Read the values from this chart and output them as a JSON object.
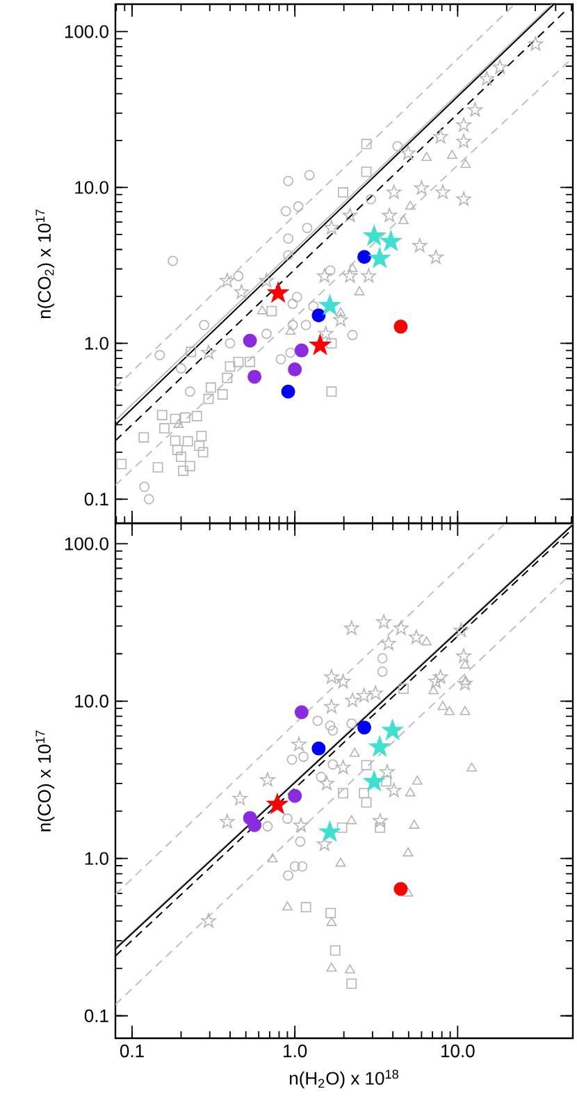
{
  "chart_data": [
    {
      "type": "scatter",
      "ylabel": "n(CO$_{2}$) x 10$^{17}$",
      "log": "xy",
      "xlim": [
        0.079,
        51
      ],
      "ylim": [
        0.07,
        150
      ],
      "yticks": [
        0.1,
        {
          "value": 1,
          "label": "1.0"
        },
        {
          "value": 10,
          "label": "10.0"
        },
        {
          "value": 100,
          "label": "100.0"
        }
      ],
      "tick_labels": "y",
      "series": [
        {
          "color": "#b4b4b4",
          "marker": "square",
          "x": [
            0.086,
            0.118,
            0.153,
            0.158,
            0.184,
            0.212,
            0.25,
            0.184,
            0.22,
            0.19,
            0.2,
            0.259,
            0.273,
            0.144,
            0.206,
            0.227,
            0.267,
            0.295,
            0.305,
            0.36,
            0.384,
            0.4,
            0.45,
            0.53,
            0.23,
            1.68,
            1.68,
            2.75,
            2.75,
            1.98,
            0.72
          ],
          "values": [
            0.168,
            0.249,
            0.346,
            0.285,
            0.327,
            0.334,
            0.341,
            0.237,
            0.235,
            0.207,
            0.187,
            0.22,
            0.2,
            0.16,
            0.152,
            0.163,
            0.254,
            0.44,
            0.52,
            0.47,
            0.6,
            0.71,
            0.76,
            0.76,
            0.88,
            0.49,
            1.0,
            19.0,
            12.6,
            9.3,
            1.61
          ]
        },
        {
          "color": "#b4b4b4",
          "marker": "circle",
          "x": [
            0.178,
            0.91,
            1.23,
            0.88,
            1.05,
            1.19,
            0.91,
            0.91,
            4.27,
            2.93,
            1.65,
            0.148,
            0.2,
            0.227,
            0.277,
            0.4,
            0.67,
            0.97,
            1.17,
            0.82,
            0.94,
            2.26,
            0.119,
            0.127,
            1.03,
            1.3,
            0.45,
            0.97
          ],
          "values": [
            3.38,
            11.0,
            12.0,
            7.05,
            7.55,
            5.5,
            4.7,
            3.67,
            18.4,
            8.4,
            2.93,
            0.84,
            0.69,
            0.49,
            1.31,
            1.0,
            1.15,
            1.31,
            1.31,
            0.79,
            0.87,
            1.13,
            0.12,
            0.1,
            1.98,
            1.73,
            2.7,
            1.79
          ]
        },
        {
          "color": "#b4b4b4",
          "marker": "triangle",
          "x": [
            9.25,
            11.2,
            6.44,
            5.12,
            4.65,
            2.26,
            2.49,
            0.94,
            0.63,
            0.193,
            1.91
          ],
          "values": [
            16.0,
            14.0,
            15.5,
            7.55,
            6.1,
            3.0,
            2.13,
            1.19,
            1.61,
            0.3,
            1.56
          ]
        },
        {
          "color": "#b4b4b4",
          "marker": "star",
          "x": [
            30.1,
            18.2,
            15.1,
            12.8,
            10.9,
            7.85,
            10.9,
            6.0,
            8.1,
            10.9,
            5.85,
            7.35,
            4.96,
            1.68,
            2.18,
            4.06,
            3.81,
            0.384,
            0.47,
            0.295,
            1.52,
            2.18,
            2.84,
            1.91,
            1.55,
            0.67
          ],
          "values": [
            83,
            59,
            49.7,
            31.4,
            25.1,
            21.1,
            19.7,
            9.9,
            9.3,
            8.4,
            4.22,
            3.56,
            16.6,
            5.5,
            6.6,
            9.3,
            6.6,
            2.52,
            2.13,
            0.87,
            2.7,
            2.7,
            2.7,
            1.41,
            1.15,
            2.52
          ]
        },
        {
          "type": "line",
          "color": "#c0c0c0",
          "line_style": "dashed",
          "marker": "none",
          "x": [
            0.079,
            22.4
          ],
          "values": [
            0.52,
            150
          ]
        },
        {
          "type": "line",
          "color": "#c0c0c0",
          "line_style": "dashed",
          "marker": "none",
          "x": [
            0.079,
            51
          ],
          "values": [
            0.123,
            68
          ]
        },
        {
          "type": "line",
          "color": "#c0c0c0",
          "line_style": "solid",
          "marker": "none",
          "x": [
            0.079,
            38
          ],
          "values": [
            0.32,
            150
          ]
        },
        {
          "type": "line",
          "color": "#000000",
          "line_style": "dashed",
          "marker": "none",
          "x": [
            0.079,
            47
          ],
          "values": [
            0.237,
            139
          ]
        },
        {
          "type": "line",
          "color": "#000000",
          "line_style": "solid",
          "marker": "none",
          "x": [
            0.079,
            39
          ],
          "values": [
            0.3,
            150
          ]
        },
        {
          "color": "#8a2be2",
          "marker": "circle",
          "x": [
            0.53,
            0.565,
            1.1,
            1.0
          ],
          "values": [
            1.04,
            0.61,
            0.9,
            0.68
          ]
        },
        {
          "color": "#0000ff",
          "marker": "circle",
          "x": [
            2.67,
            1.4,
            0.91
          ],
          "values": [
            3.58,
            1.51,
            0.49
          ]
        },
        {
          "color": "#ff0000",
          "marker": "circle",
          "x": [
            4.47
          ],
          "values": [
            1.28
          ]
        },
        {
          "color": "#ff0000",
          "marker": "star",
          "x": [
            0.79,
            1.43
          ],
          "values": [
            2.1,
            0.97
          ]
        },
        {
          "color": "#40e0d0",
          "marker": "star",
          "x": [
            3.07,
            3.89,
            3.32,
            1.64
          ],
          "values": [
            4.87,
            4.49,
            3.5,
            1.74
          ]
        }
      ]
    },
    {
      "type": "scatter",
      "xlabel": "n(H$_{2}$O) x 10$^{18}$",
      "ylabel": "n(CO) x 10$^{17}$",
      "log": "xy",
      "xlim": [
        0.079,
        51
      ],
      "ylim": [
        0.072,
        135
      ],
      "xticks": [
        0.1,
        {
          "value": 1,
          "label": "1.0"
        },
        {
          "value": 10,
          "label": "10.0"
        }
      ],
      "yticks": [
        0.1,
        {
          "value": 1,
          "label": "1.0"
        },
        {
          "value": 10,
          "label": "10.0"
        },
        {
          "value": 100,
          "label": "100.0"
        }
      ],
      "series": [
        {
          "color": "#b4b4b4",
          "marker": "square",
          "x": [
            1.17,
            1.66,
            1.77,
            2.23,
            1.95,
            3.34,
            1.98,
            2.75,
            2.66,
            4.65,
            2.75,
            3.64
          ],
          "values": [
            0.49,
            0.45,
            0.26,
            0.16,
            1.57,
            1.57,
            2.6,
            3.92,
            2.6,
            12.0,
            2.27,
            3.09
          ]
        },
        {
          "color": "#b4b4b4",
          "marker": "circle",
          "x": [
            3.45,
            3.45,
            1.38,
            1.65,
            1.71,
            0.96,
            1.13,
            2.23,
            1.45,
            1.71,
            0.9,
            0.68,
            1.08,
            0.91,
            1.0,
            1.11
          ],
          "values": [
            18.7,
            15.4,
            7.5,
            6.98,
            6.5,
            4.25,
            4.43,
            7.2,
            3.3,
            3.96,
            1.79,
            1.6,
            1.28,
            0.78,
            0.89,
            0.89
          ]
        },
        {
          "color": "#b4b4b4",
          "marker": "triangle",
          "x": [
            6.44,
            11.1,
            11.2,
            7.1,
            8.1,
            8.9,
            11.1,
            12.2,
            5.65,
            5.12,
            2.33,
            0.73,
            1.91,
            2.23,
            4.96,
            5.41,
            1.68,
            1.68,
            2.18,
            0.9,
            4.96
          ],
          "values": [
            23.7,
            16.9,
            13.3,
            11.6,
            9.2,
            8.55,
            8.55,
            3.74,
            3.09,
            2.6,
            4.64,
            0.99,
            0.93,
            1.73,
            1.08,
            1.62,
            0.39,
            0.2,
            0.195,
            0.49,
            0.6
          ]
        },
        {
          "color": "#b4b4b4",
          "marker": "star",
          "x": [
            2.23,
            3.52,
            4.49,
            3.76,
            5.57,
            10.5,
            10.9,
            7.85,
            11.1,
            1.68,
            1.98,
            1.68,
            2.26,
            3.13,
            2.66,
            1.06,
            0.68,
            0.46,
            1.98,
            1.57,
            3.69,
            4.06,
            7.35,
            0.384,
            1.09,
            1.52,
            3.34,
            0.295
          ],
          "values": [
            29,
            31.8,
            29,
            23.2,
            25.4,
            28.1,
            19.3,
            14.2,
            12.9,
            14.2,
            13.3,
            9.2,
            10.1,
            11.2,
            10.8,
            5.3,
            3.15,
            2.4,
            3.78,
            2.99,
            3.54,
            2.7,
            13.3,
            1.71,
            1.62,
            1.23,
            1.73,
            0.4
          ]
        },
        {
          "type": "line",
          "color": "#c0c0c0",
          "line_style": "dashed",
          "marker": "none",
          "x": [
            0.079,
            19.6
          ],
          "values": [
            0.59,
            135
          ]
        },
        {
          "type": "line",
          "color": "#c0c0c0",
          "line_style": "dashed",
          "marker": "none",
          "x": [
            0.079,
            51
          ],
          "values": [
            0.118,
            66
          ]
        },
        {
          "type": "line",
          "color": "#c0c0c0",
          "line_style": "solid",
          "marker": "none",
          "x": [
            0.079,
            51
          ],
          "values": [
            0.27,
            134
          ]
        },
        {
          "type": "line",
          "color": "#000000",
          "line_style": "dashed",
          "marker": "none",
          "x": [
            0.079,
            51
          ],
          "values": [
            0.24,
            125
          ]
        },
        {
          "type": "line",
          "color": "#000000",
          "line_style": "solid",
          "marker": "none",
          "x": [
            0.079,
            51
          ],
          "values": [
            0.266,
            132
          ]
        },
        {
          "color": "#8a2be2",
          "marker": "circle",
          "x": [
            1.1,
            1.0,
            0.53,
            0.565
          ],
          "values": [
            8.5,
            2.5,
            1.81,
            1.63
          ]
        },
        {
          "color": "#0000ff",
          "marker": "circle",
          "x": [
            1.4,
            2.67
          ],
          "values": [
            5.0,
            6.8
          ]
        },
        {
          "color": "#ff0000",
          "marker": "circle",
          "x": [
            4.47
          ],
          "values": [
            0.64
          ]
        },
        {
          "color": "#ff0000",
          "marker": "star",
          "x": [
            0.78
          ],
          "values": [
            2.2
          ]
        },
        {
          "color": "#40e0d0",
          "marker": "star",
          "x": [
            3.98,
            3.32,
            3.07,
            1.64
          ],
          "values": [
            6.5,
            5.1,
            3.07,
            1.47
          ]
        }
      ]
    }
  ]
}
